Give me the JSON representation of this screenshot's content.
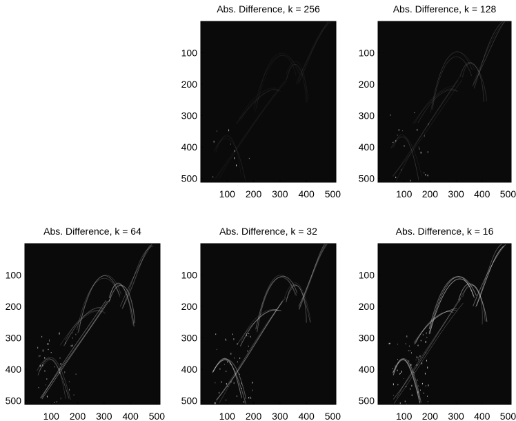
{
  "figure": {
    "panels": [
      {
        "title": "Abs. Difference, k = 256",
        "intensity": 0.22,
        "seed": 11,
        "edge_strength": 0.15
      },
      {
        "title": "Abs. Difference, k = 128",
        "intensity": 0.25,
        "seed": 23,
        "edge_strength": 0.35
      },
      {
        "title": "Abs. Difference, k = 64",
        "intensity": 0.32,
        "seed": 37,
        "edge_strength": 0.65
      },
      {
        "title": "Abs. Difference, k = 32",
        "intensity": 0.3,
        "seed": 41,
        "edge_strength": 0.75
      },
      {
        "title": "Abs. Difference, k = 16",
        "intensity": 0.34,
        "seed": 53,
        "edge_strength": 1.0
      }
    ],
    "y_ticks": [
      "100",
      "200",
      "300",
      "400",
      "500"
    ],
    "x_ticks": [
      "100",
      "200",
      "300",
      "400",
      "500"
    ],
    "colors": {
      "background": "#ffffff",
      "image_base": "#0a0a0a",
      "edge": "#e6e6e6"
    }
  }
}
